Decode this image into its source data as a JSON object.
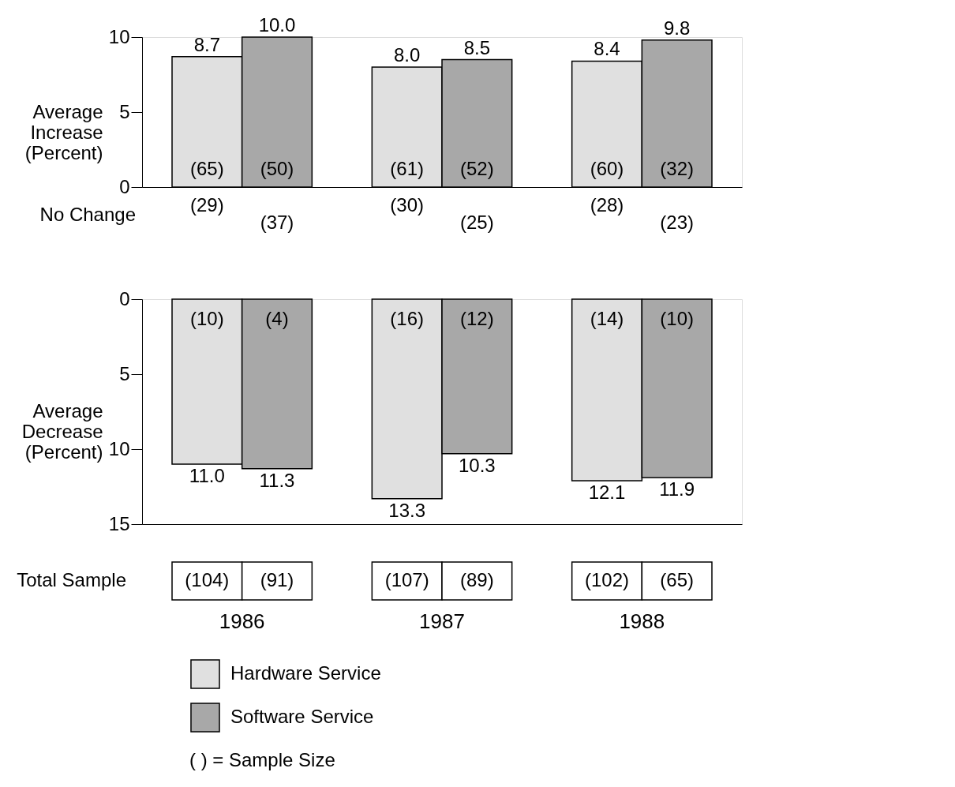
{
  "chart_data": [
    {
      "type": "bar",
      "categories": [
        "1986",
        "1987",
        "1988"
      ],
      "ylabel": "Average Increase (Percent)",
      "ylim": [
        0,
        10
      ],
      "yticks": [
        0,
        5,
        10
      ],
      "grid": false,
      "tick_labels": "y",
      "series": [
        {
          "color": "#e0e0e0",
          "values": [
            8.7,
            8.0,
            8.4
          ],
          "value_labels": [
            "8.7",
            "8.0",
            "8.4"
          ]
        },
        {
          "color": "#a8a8a8",
          "values": [
            10.0,
            8.5,
            9.8
          ],
          "value_labels": [
            "10.0",
            "8.5",
            "9.8"
          ]
        }
      ],
      "annotations": [
        "(65)",
        "(50)",
        "(61)",
        "(52)",
        "(60)",
        "(32)",
        "No Change",
        "(29)",
        "(37)",
        "(30)",
        "(25)",
        "(28)",
        "(23)"
      ]
    },
    {
      "type": "bar",
      "categories": [
        "1986",
        "1987",
        "1988"
      ],
      "ylabel": "Average Decrease (Percent)",
      "ylim": [
        15,
        0
      ],
      "yticks": [
        0,
        5,
        10,
        15
      ],
      "grid": false,
      "legend": "bottom",
      "series": [
        {
          "name": "Hardware Service",
          "color": "#e0e0e0",
          "values": [
            11.0,
            13.3,
            12.1
          ],
          "value_labels": [
            "11.0",
            "13.3",
            "12.1"
          ]
        },
        {
          "name": "Software Service",
          "color": "#a8a8a8",
          "values": [
            11.3,
            10.3,
            11.9
          ],
          "value_labels": [
            "11.3",
            "10.3",
            "11.9"
          ]
        }
      ],
      "annotations": [
        "(10)",
        "(4)",
        "(16)",
        "(12)",
        "(14)",
        "(10)",
        "Total Sample",
        "(104)",
        "(91)",
        "(107)",
        "(89)",
        "(102)",
        "(65)",
        "(     ) = Sample Size"
      ]
    }
  ]
}
